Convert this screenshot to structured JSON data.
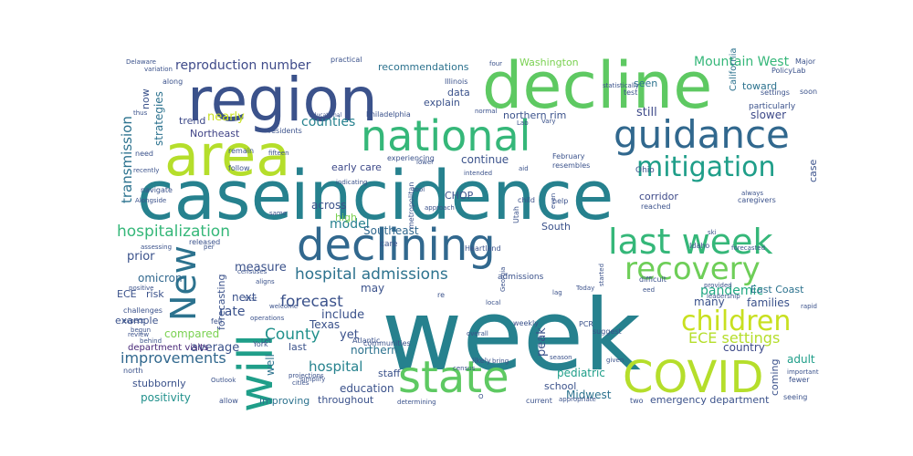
{
  "word_cloud": {
    "words": [
      {
        "text": "week",
        "color": "#26818e"
      },
      {
        "text": "case",
        "color": "#26818e"
      },
      {
        "text": "incidence",
        "color": "#26818e"
      },
      {
        "text": "decline",
        "color": "#5ec962"
      },
      {
        "text": "region",
        "color": "#3b528b"
      },
      {
        "text": "area",
        "color": "#b5de2b"
      },
      {
        "text": "national",
        "color": "#35b779"
      },
      {
        "text": "guidance",
        "color": "#31688e"
      },
      {
        "text": "declining",
        "color": "#31688e"
      },
      {
        "text": "will",
        "color": "#1f9e89"
      },
      {
        "text": "state",
        "color": "#5ec962"
      },
      {
        "text": "COVID",
        "color": "#b5de2b"
      },
      {
        "text": "New",
        "color": "#2c728e"
      },
      {
        "text": "last week",
        "color": "#35b779"
      },
      {
        "text": "recovery",
        "color": "#6ece58"
      },
      {
        "text": "mitigation",
        "color": "#1f9e89"
      },
      {
        "text": "children",
        "color": "#c8e020"
      },
      {
        "text": "hospitalization",
        "color": "#35b779"
      },
      {
        "text": "hospital admissions",
        "color": "#2c728e"
      },
      {
        "text": "transmission",
        "color": "#2c728e"
      },
      {
        "text": "reproduction number",
        "color": "#3e4a89"
      },
      {
        "text": "improvements",
        "color": "#31688e"
      },
      {
        "text": "forecast",
        "color": "#3b528b"
      },
      {
        "text": "County",
        "color": "#21918c"
      },
      {
        "text": "ECE settings",
        "color": "#b5de2b"
      },
      {
        "text": "Mountain West",
        "color": "#35b779"
      },
      {
        "text": "pandemic",
        "color": "#22a884"
      },
      {
        "text": "hospital",
        "color": "#26828e"
      },
      {
        "text": "counties",
        "color": "#26818e"
      },
      {
        "text": "model",
        "color": "#26818e"
      },
      {
        "text": "continue",
        "color": "#3b528b"
      },
      {
        "text": "strategies",
        "color": "#2c728e"
      },
      {
        "text": "nearly",
        "color": "#c8e020"
      },
      {
        "text": "trend",
        "color": "#3e4a89"
      },
      {
        "text": "Northeast",
        "color": "#414487"
      },
      {
        "text": "still",
        "color": "#3e4a89"
      },
      {
        "text": "slower",
        "color": "#3e4a89"
      },
      {
        "text": "toward",
        "color": "#2c728e"
      },
      {
        "text": "seen",
        "color": "#2c728e"
      },
      {
        "text": "Washington",
        "color": "#7ad151"
      },
      {
        "text": "recommendations",
        "color": "#2c728e"
      },
      {
        "text": "explain",
        "color": "#3b528b"
      },
      {
        "text": "data",
        "color": "#3b528b"
      },
      {
        "text": "northern rim",
        "color": "#3b528b"
      },
      {
        "text": "corridor",
        "color": "#3e4a89"
      },
      {
        "text": "early care",
        "color": "#3e4a89"
      },
      {
        "text": "CHOP",
        "color": "#3b528b"
      },
      {
        "text": "across",
        "color": "#3b528b"
      },
      {
        "text": "high",
        "color": "#7ad151"
      },
      {
        "text": "Southeast",
        "color": "#31688e"
      },
      {
        "text": "South",
        "color": "#3b528b"
      },
      {
        "text": "measure",
        "color": "#3b528b"
      },
      {
        "text": "prior",
        "color": "#3b528b"
      },
      {
        "text": "omicron",
        "color": "#31688e"
      },
      {
        "text": "rate",
        "color": "#3b528b"
      },
      {
        "text": "ECE",
        "color": "#3b528b"
      },
      {
        "text": "risk",
        "color": "#3b528b"
      },
      {
        "text": "example",
        "color": "#3b528b"
      },
      {
        "text": "compared",
        "color": "#7ad151"
      },
      {
        "text": "average",
        "color": "#3b528b"
      },
      {
        "text": "next",
        "color": "#3b528b"
      },
      {
        "text": "include",
        "color": "#3b528b"
      },
      {
        "text": "Texas",
        "color": "#3b528b"
      },
      {
        "text": "yet",
        "color": "#3b528b"
      },
      {
        "text": "northern",
        "color": "#2c728e"
      },
      {
        "text": "may",
        "color": "#3b528b"
      },
      {
        "text": "peak",
        "color": "#3b528b"
      },
      {
        "text": "adult",
        "color": "#1f9e89"
      },
      {
        "text": "country",
        "color": "#3e4a89"
      },
      {
        "text": "East Coast",
        "color": "#2c728e"
      },
      {
        "text": "families",
        "color": "#3b528b"
      },
      {
        "text": "many",
        "color": "#3b528b"
      },
      {
        "text": "positivity",
        "color": "#21918c"
      },
      {
        "text": "education",
        "color": "#3b528b"
      },
      {
        "text": "pediatric",
        "color": "#1f9e89"
      },
      {
        "text": "Midwest",
        "color": "#2c728e"
      },
      {
        "text": "school",
        "color": "#3b528b"
      },
      {
        "text": "staff",
        "color": "#3b528b"
      },
      {
        "text": "last",
        "color": "#3b528b"
      },
      {
        "text": "well",
        "color": "#2c728e"
      },
      {
        "text": "improving",
        "color": "#2c728e"
      },
      {
        "text": "throughout",
        "color": "#3b528b"
      },
      {
        "text": "emergency department",
        "color": "#3b528b"
      },
      {
        "text": "department visits",
        "color": "#482878"
      },
      {
        "text": "stubbornly",
        "color": "#3b528b"
      },
      {
        "text": "forecasting",
        "color": "#3b528b"
      },
      {
        "text": "now",
        "color": "#3b528b"
      },
      {
        "text": "coming",
        "color": "#3b528b"
      },
      {
        "text": "case",
        "color": "#3b528b"
      },
      {
        "text": "particularly",
        "color": "#3b528b"
      },
      {
        "text": "settings",
        "color": "#3b528b"
      },
      {
        "text": "California",
        "color": "#2c728e"
      },
      {
        "text": "Ohio",
        "color": "#3b528b"
      },
      {
        "text": "test",
        "color": "#3b528b"
      },
      {
        "text": "PolicyLab",
        "color": "#3b528b"
      },
      {
        "text": "Major",
        "color": "#3b528b"
      },
      {
        "text": "soon",
        "color": "#3b528b"
      },
      {
        "text": "practical",
        "color": "#3b528b"
      },
      {
        "text": "Delaware",
        "color": "#3b528b"
      },
      {
        "text": "Illinois",
        "color": "#3b528b"
      },
      {
        "text": "Philadelphia",
        "color": "#3b528b"
      },
      {
        "text": "experiencing",
        "color": "#3b528b"
      },
      {
        "text": "metropolitan",
        "color": "#3b528b"
      },
      {
        "text": "February",
        "color": "#3b528b"
      },
      {
        "text": "resembles",
        "color": "#3b528b"
      },
      {
        "text": "caregivers",
        "color": "#3b528b"
      },
      {
        "text": "Heartland",
        "color": "#3b528b"
      },
      {
        "text": "Georgia",
        "color": "#3b528b"
      },
      {
        "text": "Atlantic",
        "color": "#3b528b"
      },
      {
        "text": "communities",
        "color": "#3b528b"
      },
      {
        "text": "admissions",
        "color": "#3b528b"
      },
      {
        "text": "operations",
        "color": "#3b528b"
      },
      {
        "text": "leadership",
        "color": "#3b528b"
      },
      {
        "text": "difficult",
        "color": "#3b528b"
      },
      {
        "text": "weekly",
        "color": "#3b528b"
      },
      {
        "text": "suggest",
        "color": "#3b528b"
      },
      {
        "text": "PCR",
        "color": "#3b528b"
      },
      {
        "text": "season",
        "color": "#3b528b"
      },
      {
        "text": "likely",
        "color": "#3b528b"
      },
      {
        "text": "two",
        "color": "#3b528b"
      },
      {
        "text": "current",
        "color": "#3b528b"
      },
      {
        "text": "cities",
        "color": "#3b528b"
      },
      {
        "text": "allow",
        "color": "#3b528b"
      },
      {
        "text": "north",
        "color": "#3b528b"
      },
      {
        "text": "positive",
        "color": "#3b528b"
      },
      {
        "text": "challenges",
        "color": "#3b528b"
      },
      {
        "text": "censuses",
        "color": "#3b528b"
      },
      {
        "text": "fell",
        "color": "#3b528b"
      },
      {
        "text": "Idaho",
        "color": "#3b528b"
      },
      {
        "text": "reached",
        "color": "#3b528b"
      },
      {
        "text": "help",
        "color": "#3b528b"
      },
      {
        "text": "Utah",
        "color": "#3b528b"
      },
      {
        "text": "child",
        "color": "#3b528b"
      },
      {
        "text": "even",
        "color": "#3b528b"
      },
      {
        "text": "follow",
        "color": "#3b528b"
      },
      {
        "text": "need",
        "color": "#3b528b"
      },
      {
        "text": "recently",
        "color": "#3b528b"
      },
      {
        "text": "navigate",
        "color": "#3b528b"
      },
      {
        "text": "assessing",
        "color": "#3b528b"
      },
      {
        "text": "released",
        "color": "#3b528b"
      },
      {
        "text": "per",
        "color": "#3b528b"
      },
      {
        "text": "along",
        "color": "#3b528b"
      },
      {
        "text": "variation",
        "color": "#3b528b"
      },
      {
        "text": "four",
        "color": "#3b528b"
      },
      {
        "text": "normal",
        "color": "#3b528b"
      },
      {
        "text": "Lab",
        "color": "#3b528b"
      },
      {
        "text": "residents",
        "color": "#3b528b"
      },
      {
        "text": "educational",
        "color": "#3b528b"
      },
      {
        "text": "remain",
        "color": "#3b528b"
      },
      {
        "text": "indicating",
        "color": "#3b528b"
      },
      {
        "text": "intended",
        "color": "#3b528b"
      },
      {
        "text": "approach",
        "color": "#3b528b"
      },
      {
        "text": "review",
        "color": "#3b528b"
      },
      {
        "text": "expect",
        "color": "#3b528b"
      },
      {
        "text": "York",
        "color": "#3b528b"
      },
      {
        "text": "Let",
        "color": "#3b528b"
      },
      {
        "text": "projections",
        "color": "#3b528b"
      },
      {
        "text": "simplify",
        "color": "#3b528b"
      },
      {
        "text": "census",
        "color": "#3b528b"
      },
      {
        "text": "overall",
        "color": "#3b528b"
      },
      {
        "text": "given",
        "color": "#3b528b"
      },
      {
        "text": "fewer",
        "color": "#3b528b"
      },
      {
        "text": "seeing",
        "color": "#3b528b"
      },
      {
        "text": "important",
        "color": "#3b528b"
      },
      {
        "text": "rapid",
        "color": "#3b528b"
      },
      {
        "text": "provided",
        "color": "#3b528b"
      },
      {
        "text": "Today",
        "color": "#3b528b"
      },
      {
        "text": "started",
        "color": "#3b528b"
      },
      {
        "text": "local",
        "color": "#3b528b"
      },
      {
        "text": "lag",
        "color": "#3b528b"
      },
      {
        "text": "re",
        "color": "#3b528b"
      },
      {
        "text": "forecasted",
        "color": "#3b528b"
      },
      {
        "text": "always",
        "color": "#3b528b"
      },
      {
        "text": "ski",
        "color": "#3b528b"
      },
      {
        "text": "Outlook",
        "color": "#3b528b"
      },
      {
        "text": "determining",
        "color": "#3b528b"
      },
      {
        "text": "welcome",
        "color": "#3b528b"
      },
      {
        "text": "thus",
        "color": "#3b528b"
      },
      {
        "text": "behind",
        "color": "#3b528b"
      },
      {
        "text": "begun",
        "color": "#3b528b"
      },
      {
        "text": "Alongside",
        "color": "#3b528b"
      },
      {
        "text": "same",
        "color": "#3b528b"
      },
      {
        "text": "tool",
        "color": "#3b528b"
      },
      {
        "text": "aligns",
        "color": "#3b528b"
      },
      {
        "text": "first",
        "color": "#3b528b"
      },
      {
        "text": "lower",
        "color": "#3b528b"
      },
      {
        "text": "Vary",
        "color": "#3b528b"
      },
      {
        "text": "fifteen",
        "color": "#3b528b"
      },
      {
        "text": "bring",
        "color": "#3b528b"
      },
      {
        "text": "appropriate",
        "color": "#3b528b"
      },
      {
        "text": "statistically",
        "color": "#3b528b"
      },
      {
        "text": "O",
        "color": "#3b528b"
      },
      {
        "text": "eed",
        "color": "#3b528b"
      },
      {
        "text": "aid",
        "color": "#3b528b"
      },
      {
        "text": "care",
        "color": "#3b528b"
      }
    ]
  }
}
